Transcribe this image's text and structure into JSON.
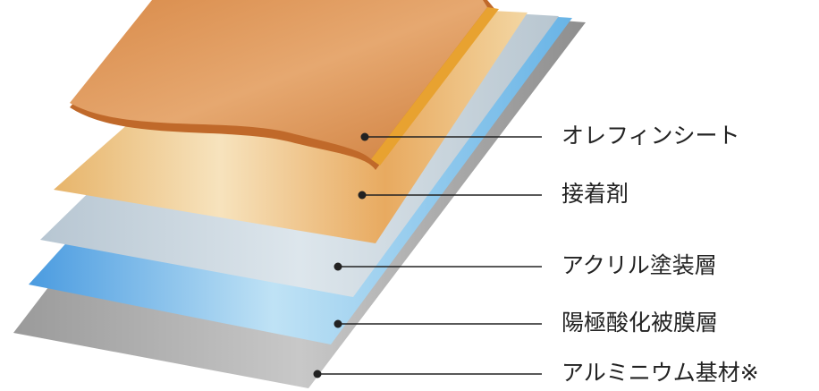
{
  "layers": [
    {
      "label": "オレフィンシート"
    },
    {
      "label": "接着剤"
    },
    {
      "label": "アクリル塗装層"
    },
    {
      "label": "陽極酸化被膜層"
    },
    {
      "label": "アルミニウム基材※"
    }
  ]
}
